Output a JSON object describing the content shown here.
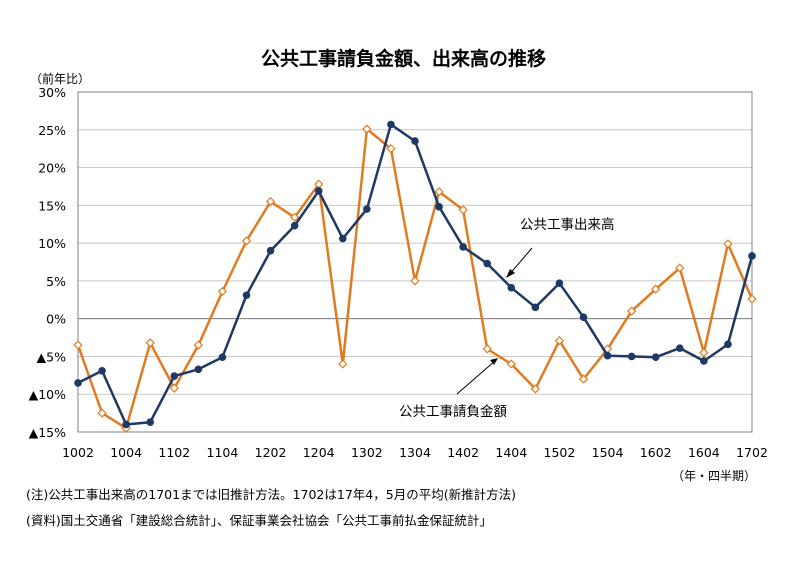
{
  "chart_data": {
    "type": "line",
    "title": "公共工事請負金額、出来高の推移",
    "y_unit_label": "（前年比）",
    "x_unit_label": "（年・四半期）",
    "ylim": [
      -15,
      30
    ],
    "y_ticks": [
      30,
      25,
      20,
      15,
      10,
      5,
      0,
      -5,
      -10,
      -15
    ],
    "y_tick_labels": [
      "30%",
      "25%",
      "20%",
      "15%",
      "10%",
      "5%",
      "0%",
      "▲5%",
      "▲10%",
      "▲15%"
    ],
    "x": [
      "1002",
      "1003",
      "1004",
      "1101",
      "1102",
      "1103",
      "1104",
      "1201",
      "1202",
      "1203",
      "1204",
      "1301",
      "1302",
      "1303",
      "1304",
      "1401",
      "1402",
      "1403",
      "1404",
      "1501",
      "1502",
      "1503",
      "1504",
      "1601",
      "1602",
      "1603",
      "1604",
      "1701",
      "1702"
    ],
    "x_tick_labels": [
      "1002",
      "1004",
      "1102",
      "1104",
      "1202",
      "1204",
      "1302",
      "1304",
      "1402",
      "1404",
      "1502",
      "1504",
      "1602",
      "1604",
      "1702"
    ],
    "grid": "horizontal",
    "series": [
      {
        "name": "公共工事出来高",
        "color": "#1f3864",
        "marker": "filled-circle",
        "values": [
          -8.5,
          -6.9,
          -14.0,
          -13.7,
          -7.6,
          -6.7,
          -5.1,
          3.1,
          9.0,
          12.3,
          16.9,
          10.6,
          14.5,
          25.7,
          23.5,
          14.8,
          9.5,
          7.3,
          4.1,
          1.5,
          4.7,
          0.2,
          -4.9,
          -5.0,
          -5.1,
          -3.9,
          -5.6,
          -3.4,
          8.3
        ]
      },
      {
        "name": "公共工事請負金額",
        "color": "#e07b20",
        "marker": "open-diamond",
        "values": [
          -3.5,
          -12.5,
          -14.5,
          -3.2,
          -9.2,
          -3.5,
          3.6,
          10.3,
          15.5,
          13.4,
          17.8,
          -6.0,
          25.1,
          22.5,
          5.0,
          16.8,
          14.4,
          -4.0,
          -6.0,
          -9.3,
          -2.9,
          -8.0,
          -4.0,
          1.0,
          3.9,
          6.7,
          -4.5,
          9.9,
          2.6
        ]
      }
    ],
    "annotations": [
      {
        "text": "公共工事出来高",
        "series": "公共工事出来高"
      },
      {
        "text": "公共工事請負金額",
        "series": "公共工事請負金額"
      }
    ]
  },
  "footnotes": {
    "note": "(注)公共工事出来高の1701までは旧推計方法。1702は17年4，5月の平均(新推計方法)",
    "source": "(資料)国土交通省「建設総合統計」、保証事業会社協会「公共工事前払金保証統計」"
  }
}
